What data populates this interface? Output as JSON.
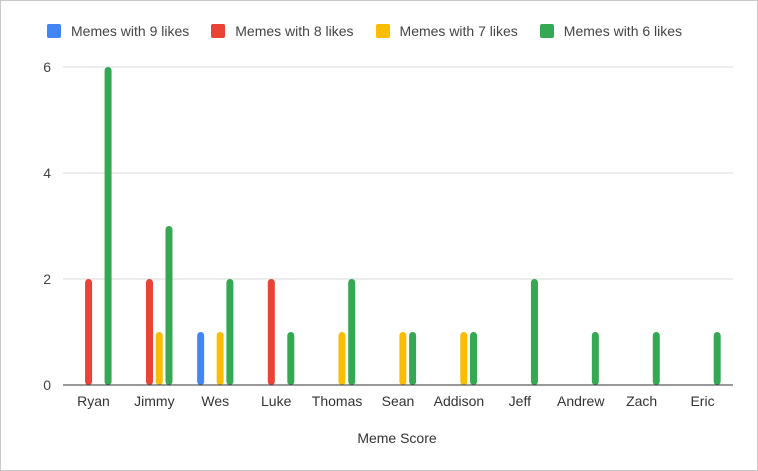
{
  "chart_data": {
    "type": "bar",
    "xlabel": "Meme Score",
    "ylabel": "",
    "ylim": [
      0,
      6
    ],
    "yticks": [
      0,
      2,
      4,
      6
    ],
    "grid": true,
    "legend_position": "top",
    "categories": [
      "Ryan",
      "Jimmy",
      "Wes",
      "Luke",
      "Thomas",
      "Sean",
      "Addison",
      "Jeff",
      "Andrew",
      "Zach",
      "Eric"
    ],
    "series": [
      {
        "name": "Memes with 9 likes",
        "color": "#4285f4",
        "values": [
          0,
          0,
          1,
          0,
          0,
          0,
          0,
          0,
          0,
          0,
          0
        ]
      },
      {
        "name": "Memes with 8 likes",
        "color": "#ea4335",
        "values": [
          2,
          2,
          0,
          2,
          0,
          0,
          0,
          0,
          0,
          0,
          0
        ]
      },
      {
        "name": "Memes with 7 likes",
        "color": "#fbbc04",
        "values": [
          0,
          1,
          1,
          0,
          1,
          1,
          1,
          0,
          0,
          0,
          0
        ]
      },
      {
        "name": "Memes with 6 likes",
        "color": "#34a853",
        "values": [
          6,
          3,
          2,
          1,
          2,
          1,
          1,
          2,
          1,
          1,
          1
        ]
      }
    ]
  }
}
